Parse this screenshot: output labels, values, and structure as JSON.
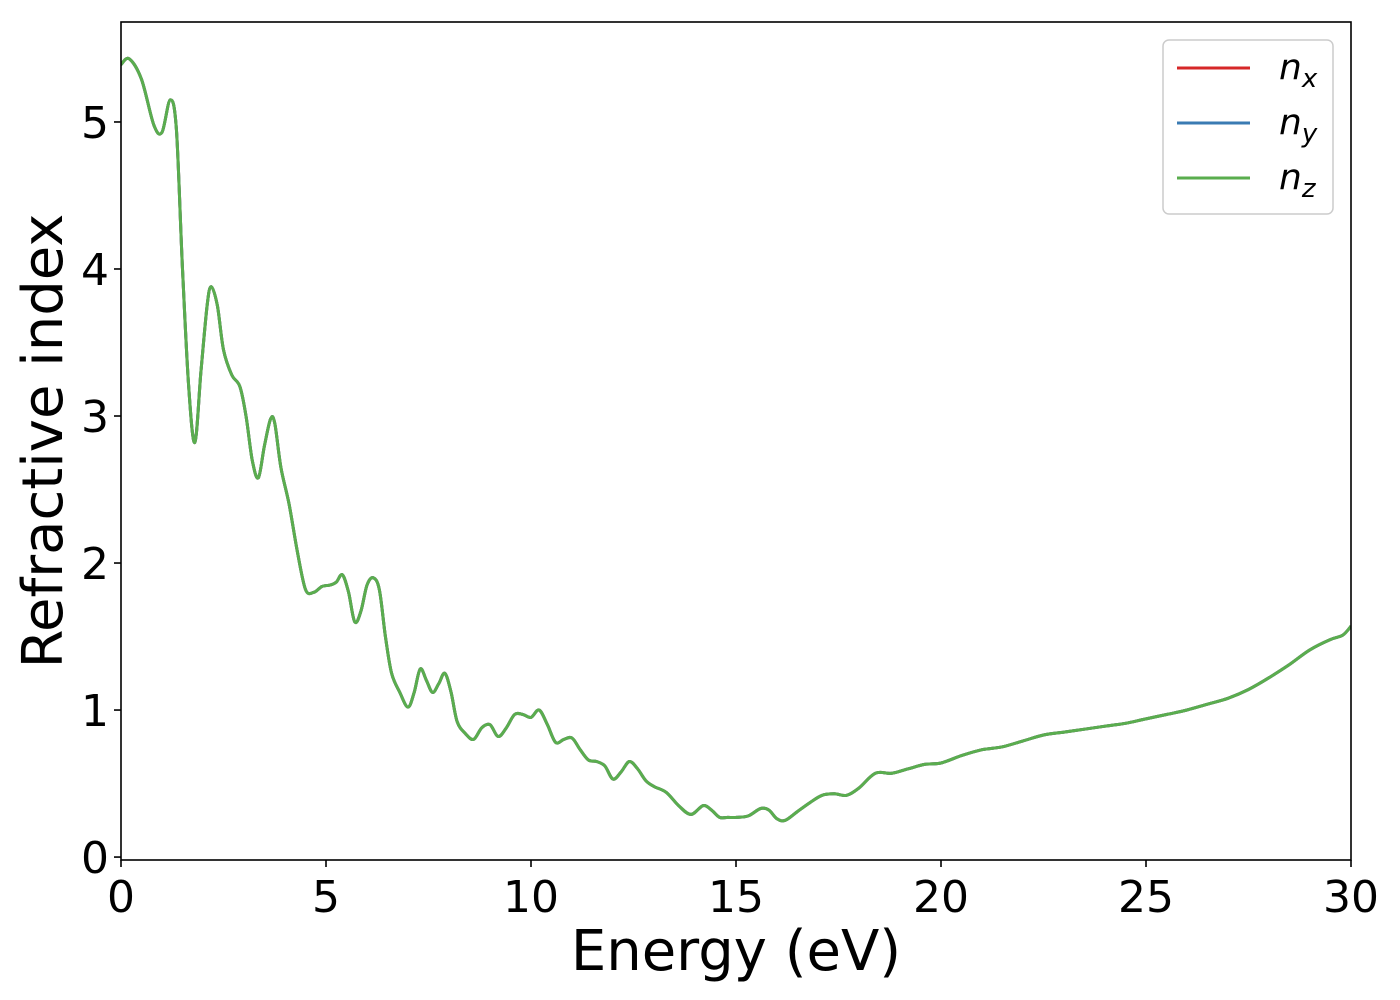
{
  "chart_data": {
    "type": "line",
    "title": "",
    "xlabel": "Energy (eV)",
    "ylabel": "Refractive index",
    "xlim": [
      0,
      30
    ],
    "ylim": [
      -0.02,
      5.68
    ],
    "xticks": [
      0,
      5,
      10,
      15,
      20,
      25,
      30
    ],
    "yticks": [
      0,
      1,
      2,
      3,
      4,
      5
    ],
    "grid": false,
    "legend_position": "top-right",
    "x": [
      0,
      0.2,
      0.5,
      0.8,
      1.0,
      1.2,
      1.35,
      1.5,
      1.65,
      1.8,
      1.95,
      2.1,
      2.2,
      2.35,
      2.5,
      2.7,
      2.9,
      3.05,
      3.2,
      3.35,
      3.5,
      3.65,
      3.75,
      3.9,
      4.1,
      4.3,
      4.5,
      4.7,
      4.9,
      5.1,
      5.25,
      5.4,
      5.55,
      5.7,
      5.85,
      6.0,
      6.15,
      6.3,
      6.45,
      6.6,
      6.8,
      7.0,
      7.15,
      7.3,
      7.45,
      7.6,
      7.75,
      7.9,
      8.05,
      8.2,
      8.4,
      8.6,
      8.8,
      9.0,
      9.2,
      9.4,
      9.6,
      9.8,
      10.0,
      10.2,
      10.4,
      10.6,
      10.8,
      11.0,
      11.2,
      11.4,
      11.6,
      11.8,
      12.0,
      12.2,
      12.4,
      12.6,
      12.8,
      13.0,
      13.3,
      13.6,
      13.9,
      14.2,
      14.4,
      14.6,
      14.8,
      15.0,
      15.3,
      15.6,
      15.8,
      16.0,
      16.2,
      16.5,
      16.8,
      17.1,
      17.4,
      17.7,
      18.0,
      18.4,
      18.8,
      19.2,
      19.6,
      20.0,
      20.5,
      21.0,
      21.5,
      22.0,
      22.5,
      23.0,
      23.5,
      24.0,
      24.5,
      25.0,
      25.5,
      26.0,
      26.5,
      27.0,
      27.5,
      28.0,
      28.5,
      29.0,
      29.5,
      29.8,
      30.0
    ],
    "series": [
      {
        "name": "n_x",
        "label_base": "n",
        "label_sub": "x",
        "color": "#d62728"
      },
      {
        "name": "n_y",
        "label_base": "n",
        "label_sub": "y",
        "color": "#3a7bb3"
      },
      {
        "name": "n_z",
        "label_base": "n",
        "label_sub": "z",
        "color": "#5aad4e"
      }
    ],
    "values": [
      5.39,
      5.43,
      5.29,
      4.98,
      4.93,
      5.15,
      4.95,
      4.0,
      3.2,
      2.82,
      3.3,
      3.75,
      3.88,
      3.75,
      3.45,
      3.28,
      3.2,
      3.0,
      2.7,
      2.58,
      2.8,
      2.98,
      2.95,
      2.65,
      2.4,
      2.08,
      1.82,
      1.8,
      1.84,
      1.85,
      1.87,
      1.92,
      1.8,
      1.6,
      1.67,
      1.85,
      1.9,
      1.82,
      1.5,
      1.25,
      1.12,
      1.02,
      1.12,
      1.28,
      1.2,
      1.12,
      1.18,
      1.25,
      1.12,
      0.92,
      0.84,
      0.8,
      0.88,
      0.9,
      0.82,
      0.88,
      0.97,
      0.97,
      0.95,
      1.0,
      0.9,
      0.78,
      0.8,
      0.81,
      0.73,
      0.66,
      0.65,
      0.62,
      0.53,
      0.58,
      0.65,
      0.6,
      0.52,
      0.48,
      0.44,
      0.35,
      0.29,
      0.35,
      0.32,
      0.27,
      0.27,
      0.27,
      0.28,
      0.33,
      0.32,
      0.26,
      0.25,
      0.31,
      0.37,
      0.42,
      0.43,
      0.42,
      0.47,
      0.57,
      0.57,
      0.6,
      0.63,
      0.64,
      0.69,
      0.73,
      0.75,
      0.79,
      0.83,
      0.85,
      0.87,
      0.89,
      0.91,
      0.94,
      0.97,
      1.0,
      1.04,
      1.08,
      1.14,
      1.22,
      1.31,
      1.41,
      1.48,
      1.51,
      1.57
    ]
  }
}
